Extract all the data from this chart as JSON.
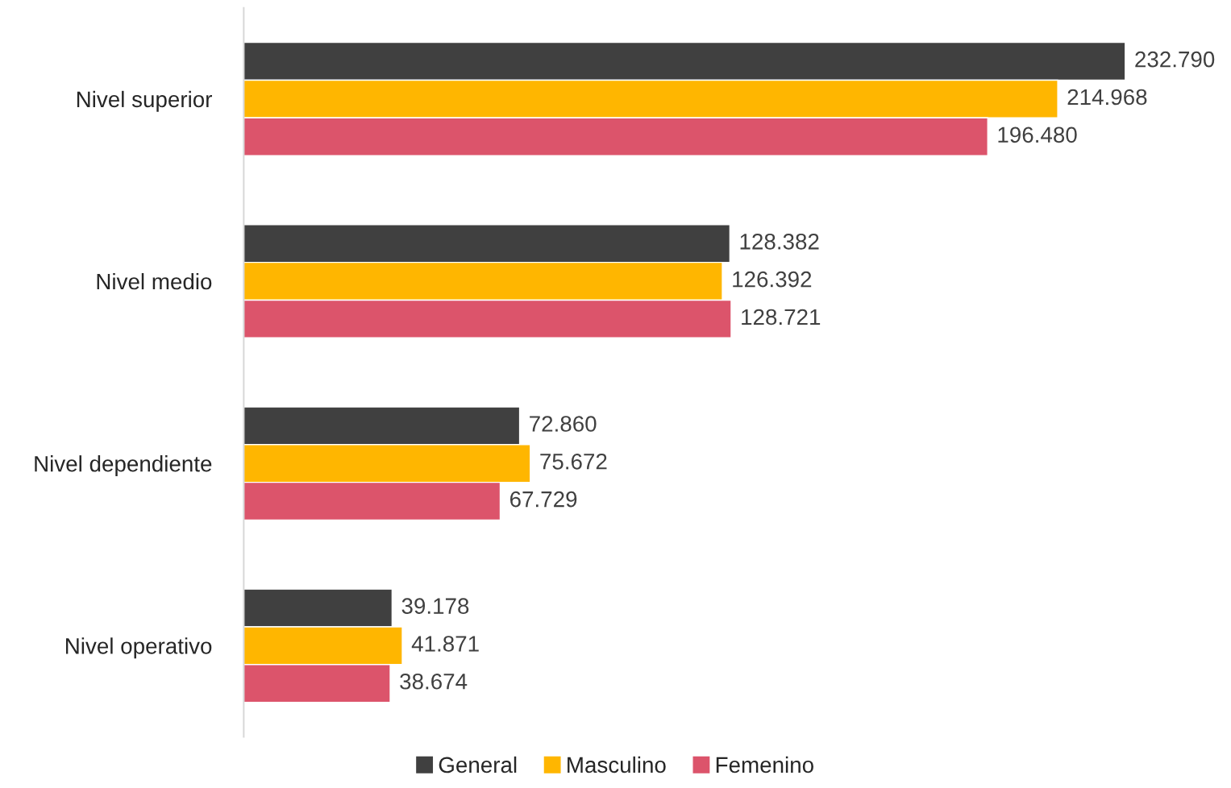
{
  "chart_data": {
    "type": "bar",
    "orientation": "horizontal",
    "categories": [
      "Nivel superior",
      "Nivel medio",
      "Nivel dependiente",
      "Nivel operativo"
    ],
    "series": [
      {
        "name": "General",
        "color": "#404040",
        "values": [
          232790,
          128382,
          72860,
          39178
        ],
        "value_labels": [
          "232.790",
          "128.382",
          "72.860",
          "39.178"
        ]
      },
      {
        "name": "Masculino",
        "color": "#ffb600",
        "values": [
          214968,
          126392,
          75672,
          41871
        ],
        "value_labels": [
          "214.968",
          "126.392",
          "75.672",
          "41.871"
        ]
      },
      {
        "name": "Femenino",
        "color": "#dc546b",
        "values": [
          196480,
          128721,
          67729,
          38674
        ],
        "value_labels": [
          "196.480",
          "128.721",
          "67.729",
          "38.674"
        ]
      }
    ],
    "grid": false,
    "legend": "bottom",
    "tick_labels": "y"
  }
}
